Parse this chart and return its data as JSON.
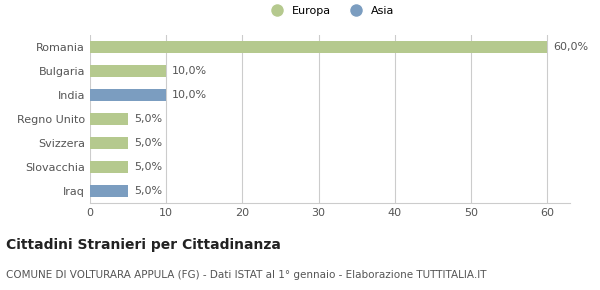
{
  "categories": [
    "Romania",
    "Bulgaria",
    "India",
    "Regno Unito",
    "Svizzera",
    "Slovacchia",
    "Iraq"
  ],
  "values": [
    60.0,
    10.0,
    10.0,
    5.0,
    5.0,
    5.0,
    5.0
  ],
  "colors": [
    "#b5c98e",
    "#b5c98e",
    "#7b9dc0",
    "#b5c98e",
    "#b5c98e",
    "#b5c98e",
    "#7b9dc0"
  ],
  "bar_labels": [
    "60,0%",
    "10,0%",
    "10,0%",
    "5,0%",
    "5,0%",
    "5,0%",
    "5,0%"
  ],
  "xlim": [
    0,
    63
  ],
  "xticks": [
    0,
    10,
    20,
    30,
    40,
    50,
    60
  ],
  "legend_labels": [
    "Europa",
    "Asia"
  ],
  "legend_colors": [
    "#b5c98e",
    "#7b9dc0"
  ],
  "title": "Cittadini Stranieri per Cittadinanza",
  "subtitle": "COMUNE DI VOLTURARA APPULA (FG) - Dati ISTAT al 1° gennaio - Elaborazione TUTTITALIA.IT",
  "title_fontsize": 10,
  "subtitle_fontsize": 7.5,
  "label_fontsize": 8,
  "tick_fontsize": 8,
  "bg_color": "#ffffff",
  "grid_color": "#cccccc"
}
